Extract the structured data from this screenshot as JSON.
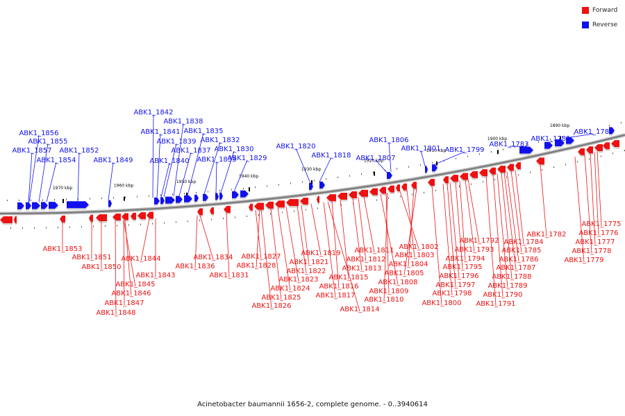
{
  "colors": {
    "forward": "#ee1111",
    "reverse": "#1111ee",
    "backbone": "#777777"
  },
  "legend": [
    {
      "label": "Forward",
      "color": "#ee1111"
    },
    {
      "label": "Reverse",
      "color": "#1111ee"
    }
  ],
  "caption": "Acinetobacter baumannii 1656-2, complete genome. - 0..3940614",
  "scale_labels": [
    "1970 kbp",
    "1960 kbp",
    "1950 kbp",
    "1940 kbp",
    "1930 kbp",
    "1920 kbp",
    "1910 kbp",
    "1900 kbp",
    "1890 kbp"
  ],
  "reverse_genes": [
    "ABK1_1856",
    "ABK1_1855",
    "ABK1_1857",
    "ABK1_1854",
    "ABK1_1852",
    "ABK1_1849",
    "ABK1_1842",
    "ABK1_1841",
    "ABK1_1838",
    "ABK1_1839",
    "ABK1_1835",
    "ABK1_1840",
    "ABK1_1837",
    "ABK1_1832",
    "ABK1_1833",
    "ABK1_1830",
    "ABK1_1829",
    "ABK1_1820",
    "ABK1_1818",
    "ABK1_1806",
    "ABK1_1807",
    "ABK1_1801",
    "ABK1_1799",
    "ABK1_1783",
    "ABK1_1781",
    "ABK1_1780"
  ],
  "forward_genes": [
    "ABK1_1853",
    "ABK1_1851",
    "ABK1_1850",
    "ABK1_1844",
    "ABK1_1843",
    "ABK1_1845",
    "ABK1_1846",
    "ABK1_1847",
    "ABK1_1848",
    "ABK1_1834",
    "ABK1_1836",
    "ABK1_1831",
    "ABK1_1827",
    "ABK1_1828",
    "ABK1_1821",
    "ABK1_1822",
    "ABK1_1819",
    "ABK1_1823",
    "ABK1_1824",
    "ABK1_1825",
    "ABK1_1826",
    "ABK1_1811",
    "ABK1_1812",
    "ABK1_1813",
    "ABK1_1815",
    "ABK1_1816",
    "ABK1_1817",
    "ABK1_1814",
    "ABK1_1802",
    "ABK1_1803",
    "ABK1_1804",
    "ABK1_1805",
    "ABK1_1808",
    "ABK1_1809",
    "ABK1_1810",
    "ABK1_1792",
    "ABK1_1793",
    "ABK1_1794",
    "ABK1_1795",
    "ABK1_1796",
    "ABK1_1797",
    "ABK1_1798",
    "ABK1_1800",
    "ABK1_1784",
    "ABK1_1785",
    "ABK1_1786",
    "ABK1_1787",
    "ABK1_1788",
    "ABK1_1789",
    "ABK1_1790",
    "ABK1_1791",
    "ABK1_1782",
    "ABK1_1775",
    "ABK1_1776",
    "ABK1_1777",
    "ABK1_1778",
    "ABK1_1779"
  ]
}
